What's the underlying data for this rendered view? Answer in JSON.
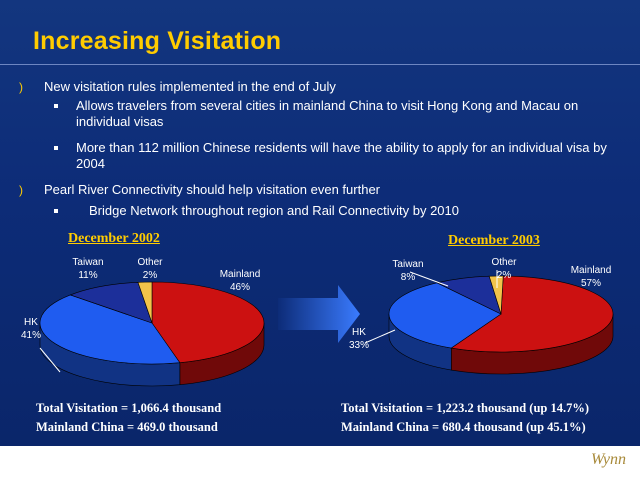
{
  "slide": {
    "title": "Increasing Visitation",
    "bullets": [
      {
        "text": "New visitation rules implemented in the end of July",
        "sub": [
          "Allows travelers from several cities in mainland China to visit Hong Kong and Macau on individual visas",
          "More than 112 million Chinese residents will have the ability to apply for an individual visa by 2004"
        ]
      },
      {
        "text": "Pearl River Connectivity should help visitation even further",
        "sub": [
          "Bridge Network throughout region and Rail Connectivity by 2010"
        ]
      }
    ],
    "logo": "Wynn"
  },
  "colors": {
    "mainland": "#cc1111",
    "hk": "#1f5cf0",
    "taiwan": "#1c2f9a",
    "other": "#f2c34a"
  },
  "chart_data": [
    {
      "type": "pie",
      "title": "December 2002",
      "categories": [
        "Mainland",
        "HK",
        "Taiwan",
        "Other"
      ],
      "values": [
        46,
        41,
        11,
        2
      ],
      "labels": [
        "46%",
        "41%",
        "11%",
        "2%"
      ],
      "totals": [
        "Total Visitation = 1,066.4 thousand",
        "Mainland China = 469.0 thousand"
      ]
    },
    {
      "type": "pie",
      "title": "December 2003",
      "categories": [
        "Mainland",
        "HK",
        "Taiwan",
        "Other"
      ],
      "values": [
        57,
        33,
        8,
        2
      ],
      "labels": [
        "57%",
        "33%",
        "8%",
        "2%"
      ],
      "totals": [
        "Total Visitation = 1,223.2 thousand (up 14.7%)",
        "Mainland China = 680.4 thousand (up 45.1%)"
      ]
    }
  ]
}
